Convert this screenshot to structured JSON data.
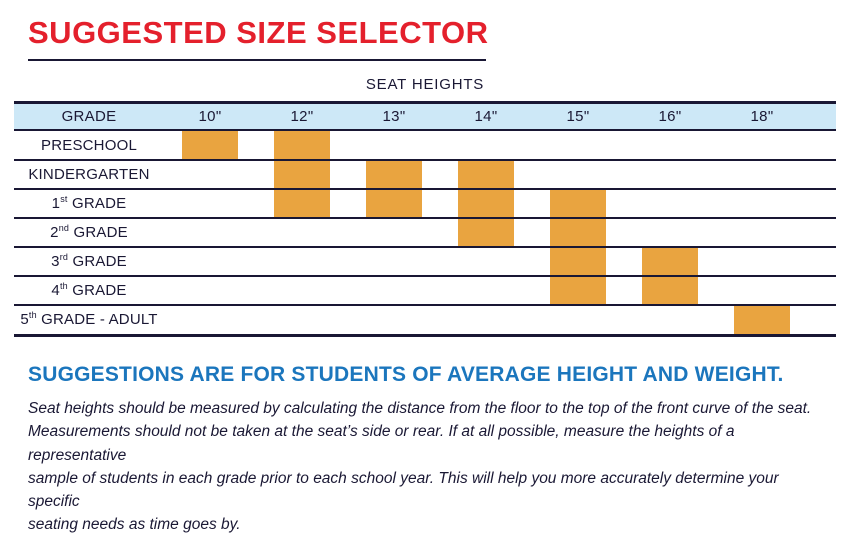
{
  "page": {
    "title": "SUGGESTED SIZE SELECTOR",
    "chart_subtitle": "SEAT HEIGHTS",
    "suggestion_heading": "SUGGESTIONS ARE FOR STUDENTS OF AVERAGE HEIGHT AND WEIGHT.",
    "note": "Seat heights should be measured by calculating the distance from the floor to the top of the front curve of the seat.\nMeasurements should not be taken at the seat’s side or rear.  If at all possible, measure the heights of a representative\nsample of students in each grade prior to each school year.  This will help you more accurately determine your specific\nseating needs as time goes by."
  },
  "colors": {
    "title_red": "#e4202c",
    "bar_orange": "#e9a440",
    "header_bg_blue": "#cde8f7",
    "line_navy": "#191734",
    "text_navy": "#1a1834",
    "heading_blue": "#1b76bd"
  },
  "chart_data": {
    "type": "table",
    "title": "SEAT HEIGHTS",
    "columns": [
      "GRADE",
      "10\"",
      "12\"",
      "13\"",
      "14\"",
      "15\"",
      "16\"",
      "18\""
    ],
    "row_labels": [
      "PRESCHOOL",
      "KINDERGARTEN",
      "1st GRADE",
      "2nd GRADE",
      "3rd GRADE",
      "4th GRADE",
      "5th GRADE - ADULT"
    ],
    "rows": [
      {
        "pre": "PRESCHOOL",
        "sup": "",
        "post": ""
      },
      {
        "pre": "KINDERGARTEN",
        "sup": "",
        "post": ""
      },
      {
        "pre": "1",
        "sup": "st",
        "post": " GRADE"
      },
      {
        "pre": "2",
        "sup": "nd",
        "post": " GRADE"
      },
      {
        "pre": "3",
        "sup": "rd",
        "post": " GRADE"
      },
      {
        "pre": "4",
        "sup": "th",
        "post": " GRADE"
      },
      {
        "pre": "5",
        "sup": "th",
        "post": " GRADE - ADULT"
      }
    ],
    "marks": [
      {
        "column": "10\"",
        "col": 1,
        "row_start": 0,
        "row_end": 0
      },
      {
        "column": "12\"",
        "col": 2,
        "row_start": 0,
        "row_end": 2
      },
      {
        "column": "13\"",
        "col": 3,
        "row_start": 1,
        "row_end": 2
      },
      {
        "column": "14\"",
        "col": 4,
        "row_start": 1,
        "row_end": 3
      },
      {
        "column": "15\"",
        "col": 5,
        "row_start": 2,
        "row_end": 5
      },
      {
        "column": "16\"",
        "col": 6,
        "row_start": 4,
        "row_end": 5
      },
      {
        "column": "18\"",
        "col": 7,
        "row_start": 6,
        "row_end": 6
      }
    ],
    "legend": "off",
    "grid": "horizontal-rules-only"
  }
}
